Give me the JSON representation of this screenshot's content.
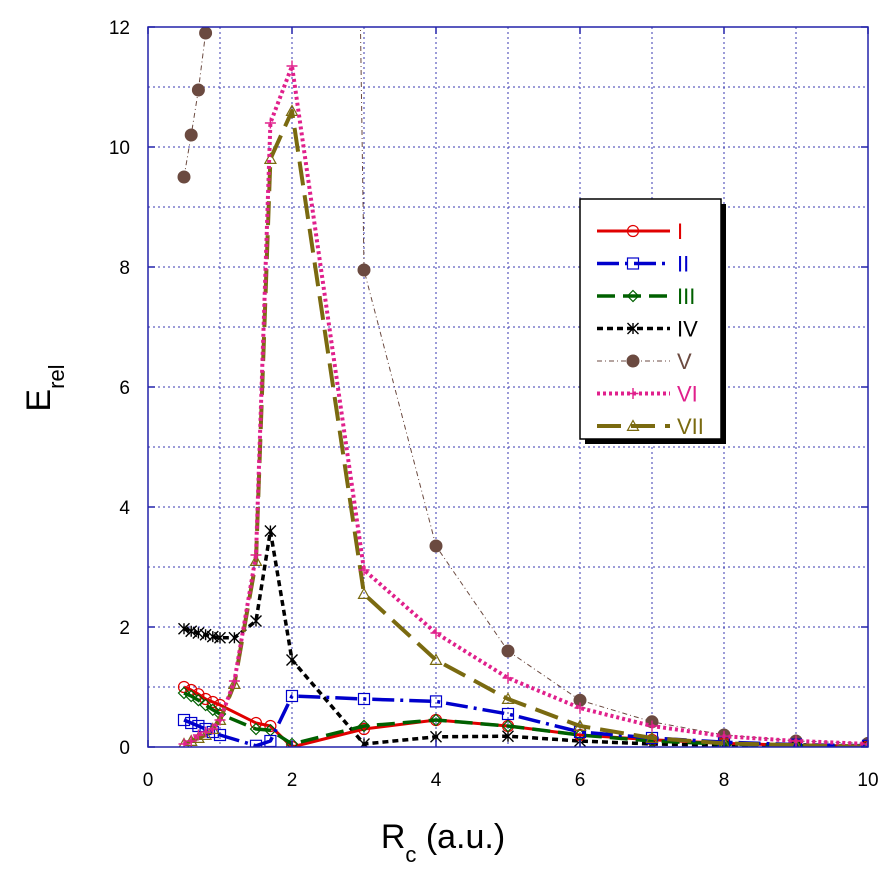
{
  "chart_data": {
    "type": "line",
    "title": "",
    "xlabel": {
      "main": "R",
      "sub": "c",
      "rest": " (a.u.)"
    },
    "ylabel": {
      "main": "E",
      "sub": "rel"
    },
    "xlim": [
      0,
      10
    ],
    "ylim": [
      0,
      12
    ],
    "xticks": [
      0,
      2,
      4,
      6,
      8,
      10
    ],
    "yticks": [
      0,
      2,
      4,
      6,
      8,
      10,
      12
    ],
    "grid": true,
    "legend_position": "right-upper",
    "series": [
      {
        "name": "I",
        "color": "#e00000",
        "marker": "circle",
        "x": [
          0.5,
          0.6,
          0.7,
          0.8,
          0.9,
          1.0,
          1.5,
          1.7,
          2.0,
          3.0,
          4.0,
          5.0,
          6.0,
          7.0,
          8.0,
          9.0,
          10.0
        ],
        "y": [
          1.0,
          0.95,
          0.88,
          0.8,
          0.75,
          0.7,
          0.4,
          0.35,
          0.0,
          0.3,
          0.45,
          0.35,
          0.2,
          0.12,
          0.06,
          0.03,
          0.01
        ]
      },
      {
        "name": "II",
        "color": "#0000cc",
        "marker": "square",
        "x": [
          0.5,
          0.6,
          0.7,
          0.8,
          0.9,
          1.0,
          1.5,
          1.7,
          2.0,
          3.0,
          4.0,
          5.0,
          6.0,
          7.0,
          8.0,
          9.0,
          10.0
        ],
        "y": [
          0.45,
          0.4,
          0.35,
          0.3,
          0.25,
          0.2,
          0.02,
          0.1,
          0.85,
          0.8,
          0.76,
          0.55,
          0.25,
          0.15,
          0.08,
          0.04,
          0.02
        ]
      },
      {
        "name": "III",
        "color": "#006000",
        "marker": "diamond",
        "x": [
          0.5,
          0.6,
          0.7,
          0.8,
          0.9,
          1.0,
          1.5,
          1.7,
          2.0,
          3.0,
          4.0,
          5.0,
          6.0,
          7.0,
          8.0,
          9.0,
          10.0
        ],
        "y": [
          0.9,
          0.85,
          0.78,
          0.7,
          0.62,
          0.55,
          0.3,
          0.28,
          0.05,
          0.35,
          0.45,
          0.35,
          0.2,
          0.1,
          0.05,
          0.02,
          0.01
        ]
      },
      {
        "name": "IV",
        "color": "#000000",
        "marker": "star",
        "x": [
          0.5,
          0.6,
          0.7,
          0.8,
          0.9,
          1.0,
          1.2,
          1.5,
          1.7,
          2.0,
          3.0,
          4.0,
          5.0,
          6.0,
          7.0,
          8.0,
          9.0,
          10.0
        ],
        "y": [
          1.97,
          1.93,
          1.9,
          1.87,
          1.84,
          1.82,
          1.82,
          2.1,
          3.6,
          1.45,
          0.05,
          0.17,
          0.18,
          0.1,
          0.05,
          0.03,
          0.02,
          0.01
        ]
      },
      {
        "name": "V",
        "color": "#6b4a40",
        "marker": "filled-circle",
        "x": [
          0.5,
          0.6,
          0.7,
          0.8,
          3.0,
          4.0,
          5.0,
          6.0,
          7.0,
          8.0,
          9.0,
          10.0
        ],
        "y": [
          9.5,
          10.2,
          10.95,
          11.9,
          7.95,
          3.35,
          1.6,
          0.78,
          0.42,
          0.2,
          0.1,
          0.06
        ]
      },
      {
        "name": "VI",
        "color": "#e0208c",
        "marker": "plus",
        "x": [
          0.5,
          0.6,
          0.7,
          0.8,
          0.9,
          1.0,
          1.2,
          1.5,
          1.7,
          2.0,
          3.0,
          4.0,
          5.0,
          6.0,
          7.0,
          8.0,
          9.0,
          10.0
        ],
        "y": [
          0.05,
          0.1,
          0.2,
          0.25,
          0.3,
          0.45,
          1.1,
          3.2,
          10.4,
          11.35,
          2.95,
          1.9,
          1.15,
          0.65,
          0.35,
          0.18,
          0.1,
          0.05
        ]
      },
      {
        "name": "VII",
        "color": "#7a6a10",
        "marker": "triangle",
        "x": [
          0.5,
          0.6,
          0.7,
          0.8,
          0.9,
          1.0,
          1.2,
          1.5,
          1.7,
          2.0,
          3.0,
          4.0,
          5.0,
          6.0,
          7.0,
          8.0,
          9.0,
          10.0
        ],
        "y": [
          0.05,
          0.1,
          0.15,
          0.2,
          0.3,
          0.45,
          1.05,
          3.1,
          9.8,
          10.6,
          2.55,
          1.45,
          0.8,
          0.35,
          0.15,
          0.06,
          0.03,
          0.01
        ]
      }
    ]
  }
}
